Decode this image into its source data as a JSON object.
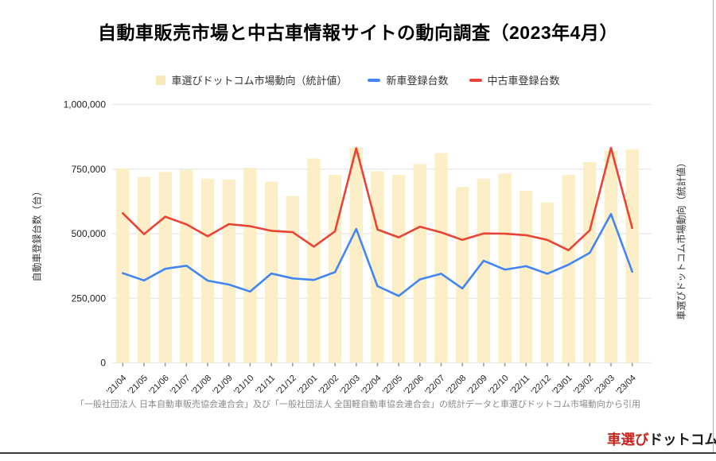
{
  "title": "自動車販売市場と中古車情報サイトの動向調査（2023年4月）",
  "legend": [
    {
      "label": "車選びドットコム市場動向（統計値）",
      "swatch": "bar-square",
      "color": "#f8e9bb"
    },
    {
      "label": "新車登録台数",
      "swatch": "line-dash",
      "color": "#4285f4"
    },
    {
      "label": "中古車登録台数",
      "swatch": "line-dash",
      "color": "#ea4335"
    }
  ],
  "footnote": "「一般社団法人 日本自動車販売協会連合会」及び「一般社団法人 全国軽自動車協会連合会」の統計データと車選びドットコム市場動向から引用",
  "logo": {
    "red_part": "車選び",
    "black_part": "ドットコム"
  },
  "chart_data": {
    "type": "bar",
    "subtype": "combo-bar-line",
    "categories": [
      "'21/04",
      "'21/05",
      "'21/06",
      "'21/07",
      "'21/08",
      "'21/09",
      "'21/10",
      "'21/11",
      "'21/12",
      "'22/01",
      "'22/02",
      "'22/03",
      "'22/04",
      "'22/05",
      "'22/06",
      "'22/07",
      "'22/08",
      "'22/09",
      "'22/10",
      "'22/11",
      "'22/12",
      "'23/01",
      "'23/02",
      "'23/03",
      "'23/04"
    ],
    "series": [
      {
        "name": "車選びドットコム市場動向（統計値）",
        "type": "bar",
        "color": "#fcefc7",
        "values": [
          753000,
          720000,
          739000,
          747000,
          713000,
          710000,
          755000,
          701000,
          646000,
          791000,
          728000,
          834000,
          742000,
          728000,
          770000,
          812000,
          681000,
          713000,
          733000,
          666000,
          621000,
          728000,
          777000,
          821000,
          827000
        ]
      },
      {
        "name": "新車登録台数",
        "type": "line",
        "color": "#4285f4",
        "values": [
          347000,
          319000,
          364000,
          376000,
          318000,
          303000,
          276000,
          346000,
          327000,
          321000,
          351000,
          518000,
          297000,
          259000,
          323000,
          345000,
          288000,
          395000,
          361000,
          374000,
          345000,
          380000,
          426000,
          576000,
          353000
        ]
      },
      {
        "name": "中古車登録台数",
        "type": "line",
        "color": "#ea4335",
        "values": [
          579000,
          498000,
          566000,
          536000,
          490000,
          537000,
          529000,
          511000,
          506000,
          450000,
          509000,
          831000,
          516000,
          486000,
          527000,
          505000,
          476000,
          501000,
          500000,
          494000,
          476000,
          436000,
          513000,
          832000,
          522000
        ]
      }
    ],
    "title": "自動車販売市場と中古車情報サイトの動向調査（2023年4月）",
    "xlabel": "",
    "ylabel": "自動車登録台数（台）",
    "ylabel_right": "車選びドットコム市場動向（統計値）",
    "ylim": [
      0,
      1000000
    ],
    "y_ticks": [
      0,
      250000,
      500000,
      750000,
      1000000
    ],
    "y_tick_labels": [
      "0",
      "250,000",
      "500,000",
      "750,000",
      "1,000,000"
    ],
    "grid": true,
    "legend_position": "top"
  }
}
